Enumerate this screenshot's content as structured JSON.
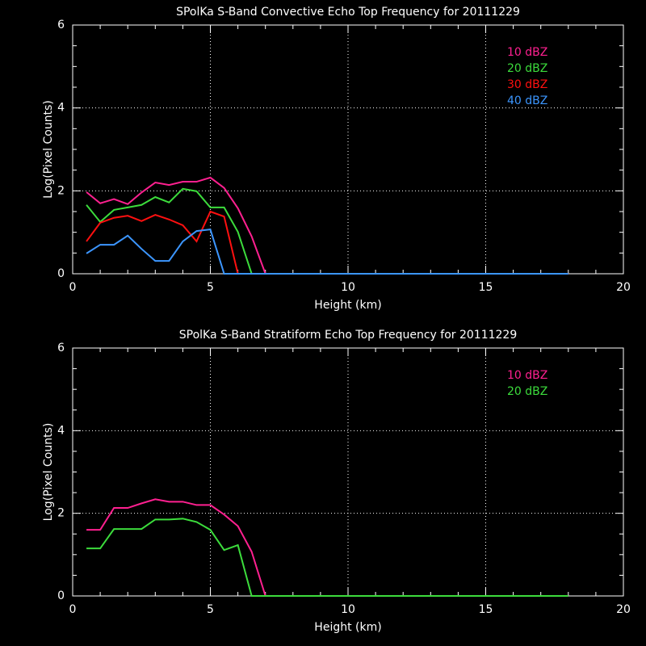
{
  "chart_data": [
    {
      "type": "line",
      "title": "SPolKa S-Band Convective Echo Top Frequency for 20111229",
      "x_label": "Height (km)",
      "y_label": "Log(Pixel Counts)",
      "x": [
        0.5,
        1,
        1.5,
        2,
        2.5,
        3,
        3.5,
        4,
        4.5,
        5,
        5.5,
        6,
        6.5,
        7,
        7.5,
        8,
        8.5,
        9,
        9.5,
        10,
        10.5,
        11,
        11.5,
        12,
        12.5,
        13,
        13.5,
        14,
        14.5,
        15,
        15.5,
        16,
        16.5,
        17,
        17.5,
        18
      ],
      "series": [
        {
          "name": "10 dBZ",
          "color": "#ff2090",
          "values": [
            1.97,
            1.7,
            1.8,
            1.68,
            1.96,
            2.2,
            2.14,
            2.22,
            2.22,
            2.32,
            2.07,
            1.58,
            0.9,
            0,
            0,
            0,
            0,
            0,
            0,
            0,
            0,
            0,
            0,
            0,
            0,
            0,
            0,
            0,
            0,
            0,
            0,
            0,
            0,
            0,
            0,
            0
          ]
        },
        {
          "name": "20 dBZ",
          "color": "#3cdc3c",
          "values": [
            1.66,
            1.25,
            1.54,
            1.6,
            1.66,
            1.85,
            1.72,
            2.05,
            1.99,
            1.6,
            1.6,
            1.01,
            0,
            0,
            0,
            0,
            0,
            0,
            0,
            0,
            0,
            0,
            0,
            0,
            0,
            0,
            0,
            0,
            0,
            0,
            0,
            0,
            0,
            0,
            0,
            0
          ]
        },
        {
          "name": "30 dBZ",
          "color": "#ff1010",
          "values": [
            0.78,
            1.23,
            1.35,
            1.4,
            1.27,
            1.42,
            1.31,
            1.17,
            0.78,
            1.5,
            1.38,
            0,
            0,
            0,
            0,
            0,
            0,
            0,
            0,
            0,
            0,
            0,
            0,
            0,
            0,
            0,
            0,
            0,
            0,
            0,
            0,
            0,
            0,
            0,
            0,
            0
          ]
        },
        {
          "name": "40 dBZ",
          "color": "#3c96ff",
          "values": [
            0.49,
            0.7,
            0.7,
            0.92,
            0.6,
            0.31,
            0.31,
            0.78,
            1.03,
            1.07,
            0,
            0,
            0,
            0,
            0,
            0,
            0,
            0,
            0,
            0,
            0,
            0,
            0,
            0,
            0,
            0,
            0,
            0,
            0,
            0,
            0,
            0,
            0,
            0,
            0,
            0
          ]
        }
      ],
      "xlim": [
        0,
        20
      ],
      "xticks": [
        0,
        5,
        10,
        15,
        20
      ],
      "ylim": [
        0,
        6
      ],
      "yticks": [
        0,
        2,
        4,
        6
      ],
      "grid": true,
      "legend": "top-right"
    },
    {
      "type": "line",
      "title": "SPolKa S-Band Stratiform Echo Top Frequency for 20111229",
      "x_label": "Height (km)",
      "y_label": "Log(Pixel Counts)",
      "x": [
        0.5,
        1,
        1.5,
        2,
        2.5,
        3,
        3.5,
        4,
        4.5,
        5,
        5.5,
        6,
        6.5,
        7,
        7.5,
        8,
        8.5,
        9,
        9.5,
        10,
        10.5,
        11,
        11.5,
        12,
        12.5,
        13,
        13.5,
        14,
        14.5,
        15,
        15.5,
        16,
        16.5,
        17,
        17.5,
        18
      ],
      "series": [
        {
          "name": "10 dBZ",
          "color": "#ff2090",
          "values": [
            1.6,
            1.6,
            2.13,
            2.13,
            2.24,
            2.34,
            2.28,
            2.28,
            2.2,
            2.2,
            1.97,
            1.69,
            1.07,
            0,
            0,
            0,
            0,
            0,
            0,
            0,
            0,
            0,
            0,
            0,
            0,
            0,
            0,
            0,
            0,
            0,
            0,
            0,
            0,
            0,
            0,
            0
          ]
        },
        {
          "name": "20 dBZ",
          "color": "#3cdc3c",
          "values": [
            1.15,
            1.15,
            1.62,
            1.62,
            1.62,
            1.85,
            1.85,
            1.87,
            1.79,
            1.6,
            1.11,
            1.23,
            0,
            0,
            0,
            0,
            0,
            0,
            0,
            0,
            0,
            0,
            0,
            0,
            0,
            0,
            0,
            0,
            0,
            0,
            0,
            0,
            0,
            0,
            0,
            0
          ]
        }
      ],
      "xlim": [
        0,
        20
      ],
      "xticks": [
        0,
        5,
        10,
        15,
        20
      ],
      "ylim": [
        0,
        6
      ],
      "yticks": [
        0,
        2,
        4,
        6
      ],
      "grid": true,
      "legend": "top-right"
    }
  ]
}
